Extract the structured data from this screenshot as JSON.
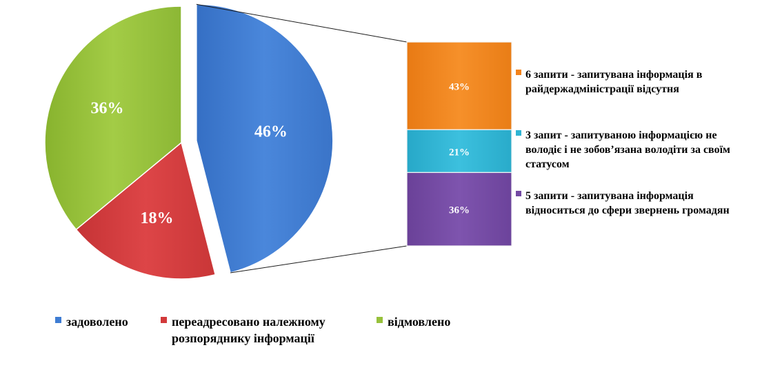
{
  "chart_data": [
    {
      "type": "pie",
      "series": [
        {
          "name": "задоволено",
          "value": 46,
          "label": "46%",
          "color": "#3e7cd3"
        },
        {
          "name": "переадресовано належному розпоряднику інформації",
          "value": 18,
          "label": "18%",
          "color": "#d2393a"
        },
        {
          "name": "відмовлено",
          "value": 36,
          "label": "36%",
          "color": "#97c13b"
        }
      ],
      "legend_position": "bottom",
      "exploded_slice": "задоволено"
    },
    {
      "type": "bar",
      "stacked": true,
      "series": [
        {
          "name": "6 запити - запитувана інформація в райдержадміністрації відсутня",
          "value": 43,
          "label": "43%",
          "color": "#f2831c"
        },
        {
          "name": "3 запит - запитуваною інформацією не володіє і не зобов’язана володіти за своїм статусом",
          "value": 21,
          "label": "21%",
          "color": "#2fb4d3"
        },
        {
          "name": "5 запити - запитувана інформація відноситься до сфери звернень громадян",
          "value": 36,
          "label": "36%",
          "color": "#7349a3"
        }
      ],
      "legend_position": "right"
    }
  ]
}
